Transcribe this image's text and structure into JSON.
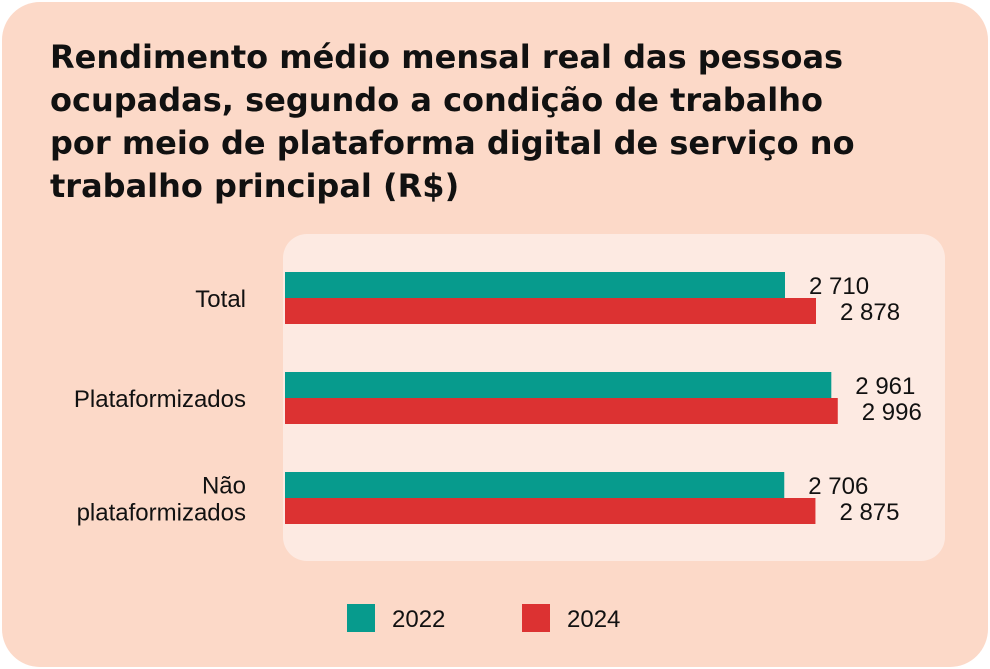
{
  "chart_data": {
    "type": "bar",
    "orientation": "horizontal",
    "title": "Rendimento médio mensal real das pessoas\nocupadas, segundo a condição de trabalho\npor meio de plataforma digital de serviço no\ntrabalho principal (R$)",
    "categories": [
      [
        "Total"
      ],
      [
        "Plataformizados"
      ],
      [
        "Não",
        "plataformizados"
      ]
    ],
    "series": [
      {
        "name": "2022",
        "color": "#079b8d",
        "values": [
          2710,
          2961,
          2706
        ],
        "labels": [
          "2 710",
          "2 961",
          "2 706"
        ]
      },
      {
        "name": "2024",
        "color": "#dc3232",
        "values": [
          2878,
          2996,
          2875
        ],
        "labels": [
          "2 878",
          "2 996",
          "2 875"
        ]
      }
    ],
    "legend_position": "bottom",
    "grid": false
  },
  "colors": {
    "card_background": "#fcd9c8",
    "plot_background": "#fdeae2"
  }
}
